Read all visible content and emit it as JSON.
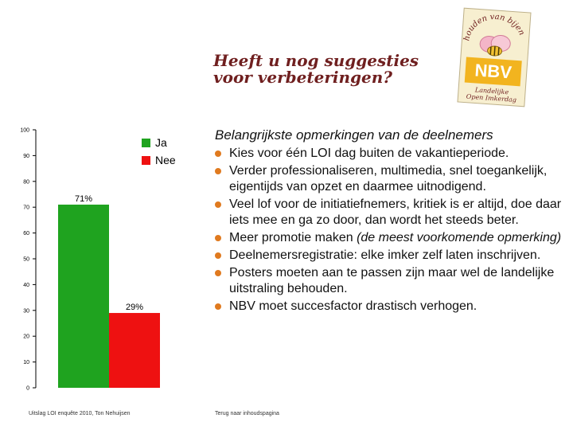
{
  "slide": {
    "title_line1": "Heeft u nog suggesties",
    "title_line2": "voor verbeteringen?",
    "subtitle": "Belangrijkste opmerkingen van de deelnemers",
    "remarks": [
      {
        "text": "Kies voor één LOI dag buiten de vakantieperiode.",
        "emphasis": ""
      },
      {
        "text": "Verder professionaliseren, multimedia, snel toegankelijk, eigentijds van opzet en daarmee uitnodigend.",
        "emphasis": ""
      },
      {
        "text": "Veel lof voor de initiatiefnemers, kritiek is er altijd, doe daar iets mee en ga zo door, dan wordt het steeds beter.",
        "emphasis": ""
      },
      {
        "text": "Meer promotie maken ",
        "emphasis": "(de meest voorkomende opmerking)"
      },
      {
        "text": "Deelnemersregistratie: elke imker zelf laten inschrijven.",
        "emphasis": ""
      },
      {
        "text": "Posters moeten aan te passen zijn maar wel de landelijke uitstraling behouden.",
        "emphasis": ""
      },
      {
        "text": "NBV moet succesfactor drastisch verhogen.",
        "emphasis": ""
      }
    ],
    "source": "Uitslag LOI enquête 2010, Ton Nehuijsen",
    "back_link": "Terug naar inhoudspagina",
    "bullet_color": "#e07a1f",
    "title_color": "#6f1f1f"
  },
  "logo": {
    "icon": "nbv-logo-icon",
    "arc_text": "houden van bijen",
    "brand": "NBV",
    "tagline_line1": "Landelijke",
    "tagline_line2": "Open Imkerdag"
  },
  "chart_data": {
    "type": "bar",
    "categories": [
      "Ja",
      "Nee"
    ],
    "values": [
      71,
      29
    ],
    "value_labels": [
      "71%",
      "29%"
    ],
    "colors": [
      "#1fa31f",
      "#ee1111"
    ],
    "legend": [
      "Ja",
      "Nee"
    ],
    "legend_position": "top-right",
    "ylim": [
      0,
      100
    ],
    "yticks": [
      0,
      10,
      20,
      30,
      40,
      50,
      60,
      70,
      80,
      90,
      100
    ],
    "grid": false,
    "title": "",
    "xlabel": "",
    "ylabel": ""
  }
}
